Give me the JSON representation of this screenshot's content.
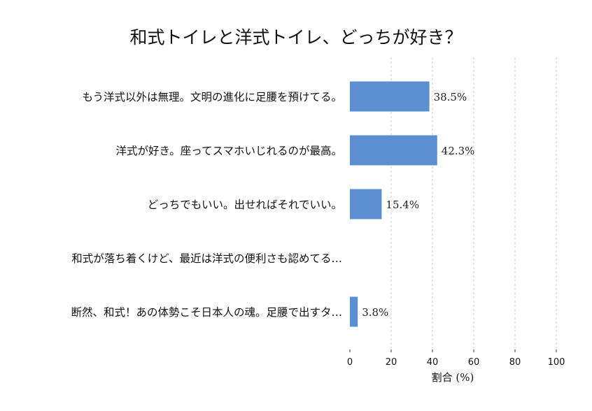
{
  "chart_data": {
    "type": "bar",
    "orientation": "horizontal",
    "title": "和式トイレと洋式トイレ、どっちが好き？",
    "xlabel": "割合 (%)",
    "ylabel": "",
    "xlim": [
      0,
      100
    ],
    "x_ticks": [
      0,
      20,
      40,
      60,
      80,
      100
    ],
    "grid": true,
    "bar_color": "#5b8fd1",
    "categories": [
      "もう洋式以外は無理。文明の進化に足腰を預けてる。",
      "洋式が好き。座ってスマホいじれるのが最高。",
      "どっちでもいい。出せればそれでいい。",
      "和式が落ち着くけど、最近は洋式の便利さも認めてる…",
      "断然、和式！あの体勢こそ日本人の魂。足腰で出すタ…"
    ],
    "values": [
      38.5,
      42.3,
      15.4,
      0,
      3.8
    ],
    "value_labels": [
      "38.5%",
      "42.3%",
      "15.4%",
      "",
      "3.8%"
    ]
  }
}
